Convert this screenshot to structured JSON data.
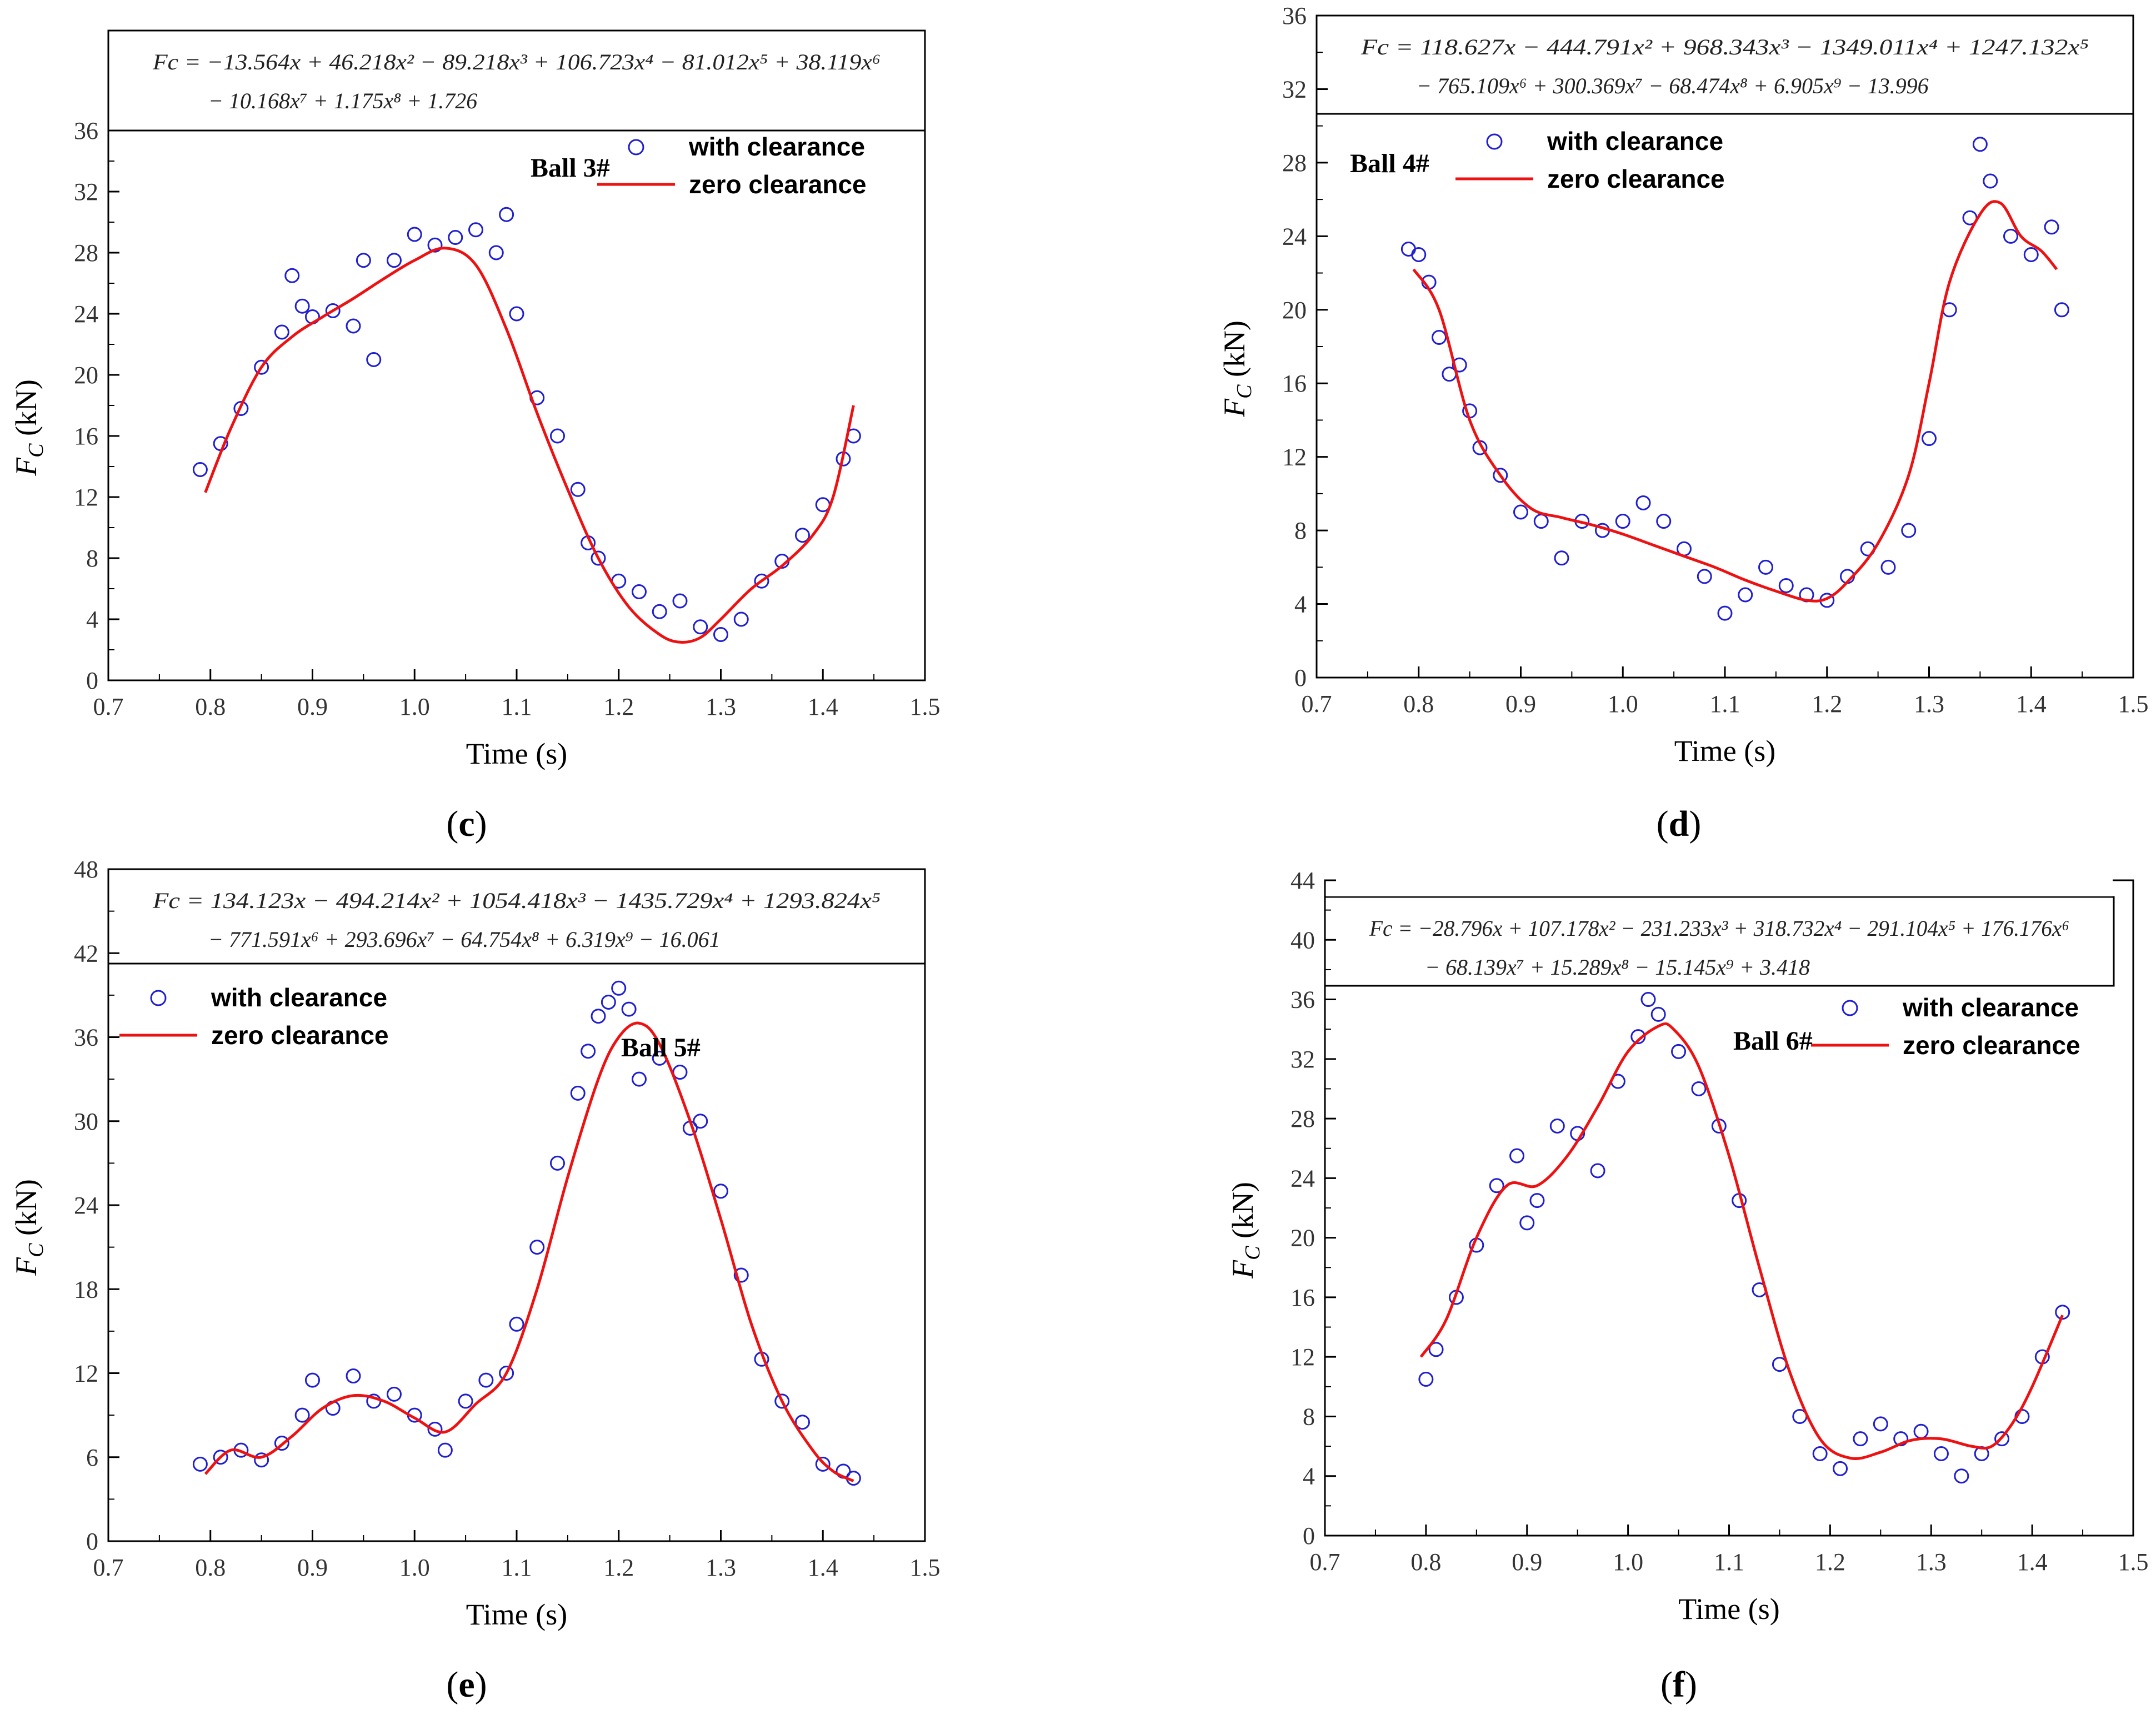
{
  "figure": {
    "colors": {
      "scatter": "#1f1fd0",
      "curve": "#ee1111",
      "axis": "#000000"
    }
  },
  "chart_data": [
    {
      "type": "scatter",
      "panel_label": "(c)",
      "ball_label": "Ball 3#",
      "equation_lines": [
        "Fc = −13.564x + 46.218x² − 89.218x³ + 106.723x⁴ − 81.012x⁵ + 38.119x⁶",
        "− 10.168x⁷ + 1.175x⁸ + 1.726"
      ],
      "xlabel": "Time (s)",
      "ylabel": "F_C (kN)",
      "xlim": [
        0.7,
        1.5
      ],
      "ylim": [
        0,
        36
      ],
      "xticks": [
        0.7,
        0.8,
        0.9,
        1.0,
        1.1,
        1.2,
        1.3,
        1.4,
        1.5
      ],
      "yticks": [
        0,
        4,
        8,
        12,
        16,
        20,
        24,
        28,
        32,
        36
      ],
      "legend": {
        "position": "top-right",
        "entries": [
          "with clearance",
          "zero clearance"
        ]
      },
      "series": [
        {
          "name": "with clearance",
          "kind": "scatter",
          "x": [
            0.79,
            0.81,
            0.83,
            0.85,
            0.87,
            0.88,
            0.89,
            0.9,
            0.92,
            0.94,
            0.95,
            0.96,
            0.98,
            1.0,
            1.02,
            1.04,
            1.06,
            1.08,
            1.09,
            1.1,
            1.12,
            1.14,
            1.16,
            1.17,
            1.18,
            1.2,
            1.22,
            1.24,
            1.26,
            1.28,
            1.3,
            1.32,
            1.34,
            1.36,
            1.38,
            1.4,
            1.42,
            1.43
          ],
          "y": [
            13.8,
            15.5,
            17.8,
            20.5,
            22.8,
            26.5,
            24.5,
            23.8,
            24.2,
            23.2,
            27.5,
            21.0,
            27.5,
            29.2,
            28.5,
            29.0,
            29.5,
            28.0,
            30.5,
            24.0,
            18.5,
            16.0,
            12.5,
            9.0,
            8.0,
            6.5,
            5.8,
            4.5,
            5.2,
            3.5,
            3.0,
            4.0,
            6.5,
            7.8,
            9.5,
            11.5,
            14.5,
            16.0
          ]
        },
        {
          "name": "zero clearance",
          "kind": "line",
          "x": [
            0.795,
            0.82,
            0.85,
            0.88,
            0.91,
            0.94,
            0.97,
            1.0,
            1.03,
            1.06,
            1.09,
            1.12,
            1.15,
            1.18,
            1.21,
            1.24,
            1.26,
            1.28,
            1.3,
            1.33,
            1.36,
            1.39,
            1.41,
            1.43
          ],
          "y": [
            12.3,
            16.5,
            20.5,
            22.5,
            23.8,
            25.0,
            26.3,
            27.5,
            28.3,
            27.2,
            23.0,
            17.5,
            12.5,
            8.0,
            4.8,
            3.0,
            2.5,
            2.8,
            4.0,
            6.0,
            7.5,
            9.5,
            12.0,
            18.0
          ]
        }
      ]
    },
    {
      "type": "scatter",
      "panel_label": "(d)",
      "ball_label": "Ball 4#",
      "equation_lines": [
        "Fc = 118.627x − 444.791x² + 968.343x³ − 1349.011x⁴ + 1247.132x⁵",
        "− 765.109x⁶ + 300.369x⁷ − 68.474x⁸ + 6.905x⁹ − 13.996"
      ],
      "xlabel": "Time (s)",
      "ylabel": "F_C (kN)",
      "xlim": [
        0.7,
        1.5
      ],
      "ylim": [
        0,
        36
      ],
      "xticks": [
        0.7,
        0.8,
        0.9,
        1.0,
        1.1,
        1.2,
        1.3,
        1.4,
        1.5
      ],
      "yticks": [
        0,
        4,
        8,
        12,
        16,
        20,
        24,
        28,
        32,
        36
      ],
      "legend": {
        "position": "top-left",
        "entries": [
          "with clearance",
          "zero clearance"
        ]
      },
      "series": [
        {
          "name": "with clearance",
          "kind": "scatter",
          "x": [
            0.79,
            0.8,
            0.81,
            0.82,
            0.83,
            0.84,
            0.85,
            0.86,
            0.88,
            0.9,
            0.92,
            0.94,
            0.96,
            0.98,
            1.0,
            1.02,
            1.04,
            1.06,
            1.08,
            1.1,
            1.12,
            1.14,
            1.16,
            1.18,
            1.2,
            1.22,
            1.24,
            1.26,
            1.28,
            1.3,
            1.32,
            1.34,
            1.35,
            1.36,
            1.38,
            1.4,
            1.42,
            1.43
          ],
          "y": [
            23.3,
            23.0,
            21.5,
            18.5,
            16.5,
            17.0,
            14.5,
            12.5,
            11.0,
            9.0,
            8.5,
            6.5,
            8.5,
            8.0,
            8.5,
            9.5,
            8.5,
            7.0,
            5.5,
            3.5,
            4.5,
            6.0,
            5.0,
            4.5,
            4.2,
            5.5,
            7.0,
            6.0,
            8.0,
            13.0,
            20.0,
            25.0,
            29.0,
            27.0,
            24.0,
            23.0,
            24.5,
            20.0
          ]
        },
        {
          "name": "zero clearance",
          "kind": "line",
          "x": [
            0.795,
            0.82,
            0.85,
            0.88,
            0.91,
            0.94,
            0.97,
            1.0,
            1.03,
            1.06,
            1.09,
            1.12,
            1.15,
            1.18,
            1.2,
            1.22,
            1.25,
            1.28,
            1.3,
            1.32,
            1.35,
            1.37,
            1.39,
            1.41,
            1.425
          ],
          "y": [
            22.2,
            20.0,
            14.0,
            11.0,
            9.2,
            8.7,
            8.3,
            7.8,
            7.2,
            6.6,
            6.0,
            5.3,
            4.7,
            4.2,
            4.3,
            5.2,
            7.3,
            11.0,
            16.0,
            21.5,
            25.2,
            25.8,
            24.0,
            23.2,
            22.2
          ]
        }
      ]
    },
    {
      "type": "scatter",
      "panel_label": "(e)",
      "ball_label": "Ball 5#",
      "equation_lines": [
        "Fc = 134.123x − 494.214x² + 1054.418x³ − 1435.729x⁴ + 1293.824x⁵",
        "− 771.591x⁶ + 293.696x⁷ − 64.754x⁸ + 6.319x⁹ − 16.061"
      ],
      "xlabel": "Time (s)",
      "ylabel": "F_C (kN)",
      "xlim": [
        0.7,
        1.5
      ],
      "ylim": [
        0,
        48
      ],
      "xticks": [
        0.7,
        0.8,
        0.9,
        1.0,
        1.1,
        1.2,
        1.3,
        1.4,
        1.5
      ],
      "yticks": [
        0,
        6,
        12,
        18,
        24,
        30,
        36,
        42,
        48
      ],
      "legend": {
        "position": "top-left",
        "entries": [
          "with clearance",
          "zero clearance"
        ]
      },
      "series": [
        {
          "name": "with clearance",
          "kind": "scatter",
          "x": [
            0.79,
            0.81,
            0.83,
            0.85,
            0.87,
            0.89,
            0.9,
            0.92,
            0.94,
            0.96,
            0.98,
            1.0,
            1.02,
            1.03,
            1.05,
            1.07,
            1.09,
            1.1,
            1.12,
            1.14,
            1.16,
            1.17,
            1.18,
            1.19,
            1.2,
            1.21,
            1.22,
            1.24,
            1.26,
            1.27,
            1.28,
            1.3,
            1.32,
            1.34,
            1.36,
            1.38,
            1.4,
            1.42,
            1.43
          ],
          "y": [
            5.5,
            6.0,
            6.5,
            5.8,
            7.0,
            9.0,
            11.5,
            9.5,
            11.8,
            10.0,
            10.5,
            9.0,
            8.0,
            6.5,
            10.0,
            11.5,
            12.0,
            15.5,
            21.0,
            27.0,
            32.0,
            35.0,
            37.5,
            38.5,
            39.5,
            38.0,
            33.0,
            34.5,
            33.5,
            29.5,
            30.0,
            25.0,
            19.0,
            13.0,
            10.0,
            8.5,
            5.5,
            5.0,
            4.5
          ]
        },
        {
          "name": "zero clearance",
          "kind": "line",
          "x": [
            0.795,
            0.82,
            0.85,
            0.88,
            0.91,
            0.94,
            0.97,
            1.0,
            1.03,
            1.06,
            1.09,
            1.12,
            1.15,
            1.18,
            1.2,
            1.22,
            1.24,
            1.27,
            1.3,
            1.33,
            1.36,
            1.39,
            1.41,
            1.43
          ],
          "y": [
            4.8,
            6.5,
            6.0,
            7.5,
            9.5,
            10.4,
            10.0,
            8.8,
            7.8,
            9.8,
            12.0,
            18.0,
            26.0,
            33.0,
            36.0,
            37.0,
            35.5,
            30.0,
            23.0,
            15.5,
            10.0,
            6.5,
            5.0,
            4.3
          ]
        }
      ]
    },
    {
      "type": "scatter",
      "panel_label": "(f)",
      "ball_label": "Ball 6#",
      "equation_lines": [
        "Fc = −28.796x + 107.178x² − 231.233x³ + 318.732x⁴ − 291.104x⁵ + 176.176x⁶",
        "− 68.139x⁷ + 15.289x⁸ − 15.145x⁹ + 3.418"
      ],
      "xlabel": "Time (s)",
      "ylabel": "F_C (kN)",
      "xlim": [
        0.7,
        1.5
      ],
      "ylim": [
        0,
        44
      ],
      "xticks": [
        0.7,
        0.8,
        0.9,
        1.0,
        1.1,
        1.2,
        1.3,
        1.4,
        1.5
      ],
      "yticks": [
        0,
        4,
        8,
        12,
        16,
        20,
        24,
        28,
        32,
        36,
        40,
        44
      ],
      "legend": {
        "position": "top-right",
        "entries": [
          "with clearance",
          "zero clearance"
        ]
      },
      "series": [
        {
          "name": "with clearance",
          "kind": "scatter",
          "x": [
            0.8,
            0.81,
            0.83,
            0.85,
            0.87,
            0.89,
            0.9,
            0.91,
            0.93,
            0.95,
            0.97,
            0.99,
            1.01,
            1.02,
            1.03,
            1.05,
            1.07,
            1.09,
            1.11,
            1.13,
            1.15,
            1.17,
            1.19,
            1.21,
            1.23,
            1.25,
            1.27,
            1.29,
            1.31,
            1.33,
            1.35,
            1.37,
            1.39,
            1.41,
            1.43
          ],
          "y": [
            10.5,
            12.5,
            16.0,
            19.5,
            23.5,
            25.5,
            21.0,
            22.5,
            27.5,
            27.0,
            24.5,
            30.5,
            33.5,
            36.0,
            35.0,
            32.5,
            30.0,
            27.5,
            22.5,
            16.5,
            11.5,
            8.0,
            5.5,
            4.5,
            6.5,
            7.5,
            6.5,
            7.0,
            5.5,
            4.0,
            5.5,
            6.5,
            8.0,
            12.0,
            15.0
          ]
        },
        {
          "name": "zero clearance",
          "kind": "line",
          "x": [
            0.795,
            0.82,
            0.85,
            0.88,
            0.91,
            0.94,
            0.97,
            1.0,
            1.03,
            1.045,
            1.07,
            1.1,
            1.13,
            1.16,
            1.19,
            1.22,
            1.25,
            1.28,
            1.31,
            1.34,
            1.36,
            1.38,
            1.4,
            1.43
          ],
          "y": [
            12.0,
            14.5,
            20.0,
            23.5,
            23.5,
            25.5,
            28.8,
            32.5,
            34.2,
            34.0,
            31.5,
            25.5,
            18.0,
            11.0,
            6.5,
            5.2,
            5.6,
            6.4,
            6.5,
            6.0,
            6.0,
            7.5,
            10.0,
            14.8
          ]
        }
      ]
    }
  ]
}
